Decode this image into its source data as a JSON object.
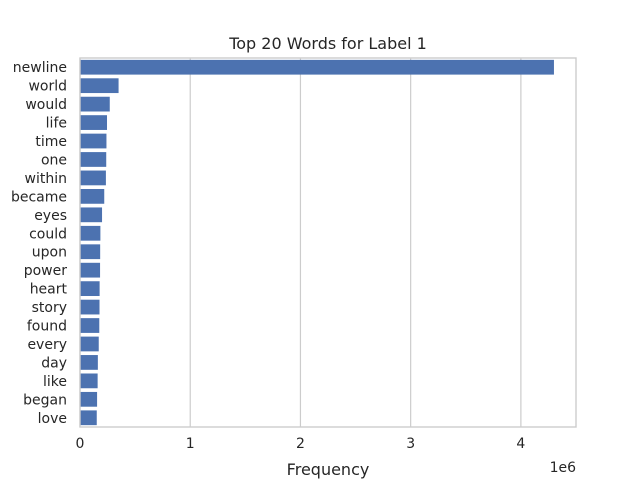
{
  "chart_data": {
    "type": "bar",
    "orientation": "horizontal",
    "title": "Top 20 Words for Label 1",
    "xlabel": "Frequency",
    "ylabel": "",
    "x_offset_label": "1e6",
    "xlim": [
      0,
      4500000
    ],
    "x_ticks": [
      0,
      1000000,
      2000000,
      3000000,
      4000000
    ],
    "x_tick_labels": [
      "0",
      "1",
      "2",
      "3",
      "4"
    ],
    "grid": "vertical",
    "bar_color": "#4c72b0",
    "grid_color": "#cccccc",
    "frame_color": "#cccccc",
    "categories": [
      "newline",
      "world",
      "would",
      "life",
      "time",
      "one",
      "within",
      "became",
      "eyes",
      "could",
      "upon",
      "power",
      "heart",
      "story",
      "found",
      "every",
      "day",
      "like",
      "began",
      "love"
    ],
    "values": [
      4300000,
      350000,
      270000,
      245000,
      240000,
      238000,
      235000,
      220000,
      200000,
      185000,
      183000,
      182000,
      178000,
      177000,
      175000,
      170000,
      162000,
      160000,
      155000,
      152000
    ]
  }
}
